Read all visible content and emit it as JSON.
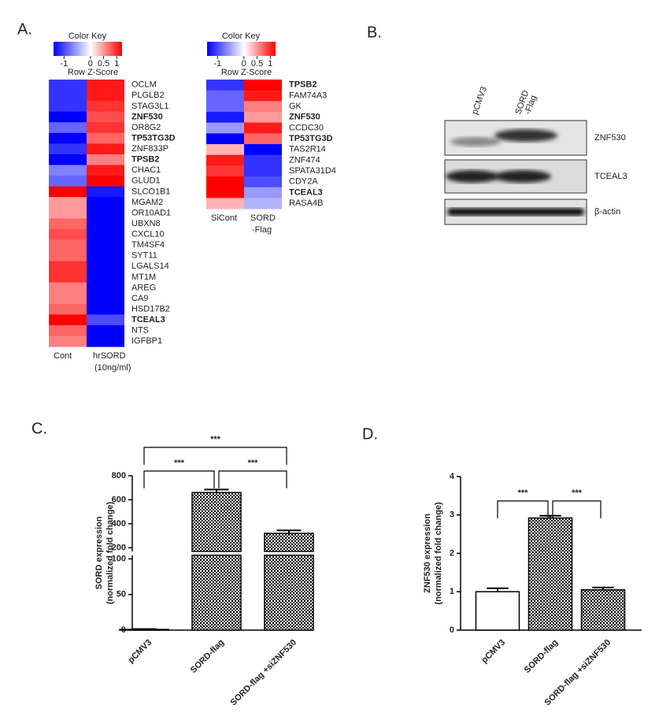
{
  "panel_labels": [
    "A.",
    "B.",
    "C.",
    "D."
  ],
  "blot": {
    "lanes": [
      [
        "pCMV3"
      ],
      [
        "SORD",
        "-Flag"
      ]
    ],
    "bands": [
      "ZNF530",
      "TCEAL3",
      "β-actin"
    ]
  },
  "chart_data": [
    {
      "type": "heatmap",
      "key_title": "Color Key",
      "key_label": "Row Z-Score",
      "key_lim": [
        -1.4,
        1.2
      ],
      "key_ticks": [
        -1,
        0,
        0.5,
        1
      ],
      "columns": [
        [
          "Cont"
        ],
        [
          "hrSORD",
          "(10ng/ml)"
        ]
      ],
      "rows": [
        "OCLM",
        "PLGLB2",
        "STAG3L1",
        "ZNF530",
        "OR8G2",
        "TP53TG3D",
        "ZNF833P",
        "TPSB2",
        "CHAC1",
        "GLUD1",
        "SLCO1B1",
        "MGAM2",
        "OR10AD1",
        "UBXN8",
        "CXCL10",
        "TM4SF4",
        "SYT11",
        "LGALS14",
        "MT1M",
        "AREG",
        "CA9",
        "HSD17B2",
        "TCEAL3",
        "NTS",
        "IGFBP1"
      ],
      "bold_rows": [
        3,
        5,
        7,
        22
      ],
      "values": [
        [
          -0.8,
          0.9
        ],
        [
          -0.8,
          0.9
        ],
        [
          -0.8,
          0.8
        ],
        [
          -1,
          0.7
        ],
        [
          -0.6,
          0.8
        ],
        [
          -1,
          0.6
        ],
        [
          -0.8,
          0.9
        ],
        [
          -1,
          0.5
        ],
        [
          -0.5,
          0.9
        ],
        [
          -0.6,
          1
        ],
        [
          1,
          -0.9
        ],
        [
          0.4,
          -1
        ],
        [
          0.4,
          -1
        ],
        [
          0.6,
          -1
        ],
        [
          0.7,
          -1
        ],
        [
          0.6,
          -1
        ],
        [
          0.6,
          -1
        ],
        [
          0.8,
          -1
        ],
        [
          0.8,
          -1
        ],
        [
          0.5,
          -1
        ],
        [
          0.5,
          -1
        ],
        [
          0.6,
          -1
        ],
        [
          1,
          -0.7
        ],
        [
          0.6,
          -1
        ],
        [
          0.5,
          -1
        ]
      ]
    },
    {
      "type": "heatmap",
      "key_title": "Color Key",
      "key_label": "Row Z-Score",
      "key_lim": [
        -1.4,
        1.2
      ],
      "key_ticks": [
        -1,
        0,
        0.5,
        1
      ],
      "columns": [
        [
          "SiCont"
        ],
        [
          "SORD",
          "-Flag"
        ]
      ],
      "rows": [
        "TPSB2",
        "FAM74A3",
        "GK",
        "ZNF530",
        "CCDC30",
        "TP53TG3D",
        "TAS2R14",
        "ZNF474",
        "SPATA31D4",
        "CDY2A",
        "TCEAL3",
        "RASA4B"
      ],
      "bold_rows": [
        0,
        3,
        5,
        10
      ],
      "values": [
        [
          -0.8,
          1
        ],
        [
          -0.6,
          0.9
        ],
        [
          -0.6,
          0.5
        ],
        [
          -0.9,
          0.4
        ],
        [
          -0.4,
          0.9
        ],
        [
          -1,
          0.6
        ],
        [
          0.3,
          -1
        ],
        [
          0.9,
          -0.8
        ],
        [
          0.8,
          -0.8
        ],
        [
          1,
          -0.7
        ],
        [
          1,
          -0.4
        ],
        [
          0.3,
          -0.3
        ]
      ]
    },
    {
      "type": "bar",
      "ylabel": [
        "SORD expression",
        "(normalized fold change)"
      ],
      "categories": [
        "pCMV3",
        "SORD-flag",
        "SORD-flag +siZNF530"
      ],
      "values": [
        1,
        660,
        320
      ],
      "errors": [
        0.5,
        25,
        25
      ],
      "fills": [
        "white",
        "check",
        "check"
      ],
      "segments": [
        {
          "ylim": [
            0,
            105
          ],
          "yticks": [
            0,
            50,
            100
          ]
        },
        {
          "ylim": [
            170,
            800
          ],
          "yticks": [
            200,
            400,
            600,
            800
          ]
        }
      ],
      "significance": [
        {
          "label": "***",
          "pair": [
            0,
            2
          ]
        },
        {
          "label": "***",
          "pair": [
            0,
            1
          ]
        },
        {
          "label": "***",
          "pair": [
            1,
            2
          ]
        }
      ]
    },
    {
      "type": "bar",
      "ylabel": [
        "ZNF530 expression",
        "(normalized fold change)"
      ],
      "categories": [
        "pCMV3",
        "SORD-flag",
        "SORD-flag +siZNF530"
      ],
      "values": [
        1,
        2.92,
        1.05
      ],
      "errors": [
        0.09,
        0.06,
        0.06
      ],
      "fills": [
        "white",
        "check",
        "check"
      ],
      "segments": [
        {
          "ylim": [
            0,
            4
          ],
          "yticks": [
            0,
            1,
            2,
            3,
            4
          ]
        }
      ],
      "significance": [
        {
          "label": "***",
          "pair": [
            0,
            1
          ]
        },
        {
          "label": "***",
          "pair": [
            1,
            2
          ]
        }
      ]
    }
  ]
}
